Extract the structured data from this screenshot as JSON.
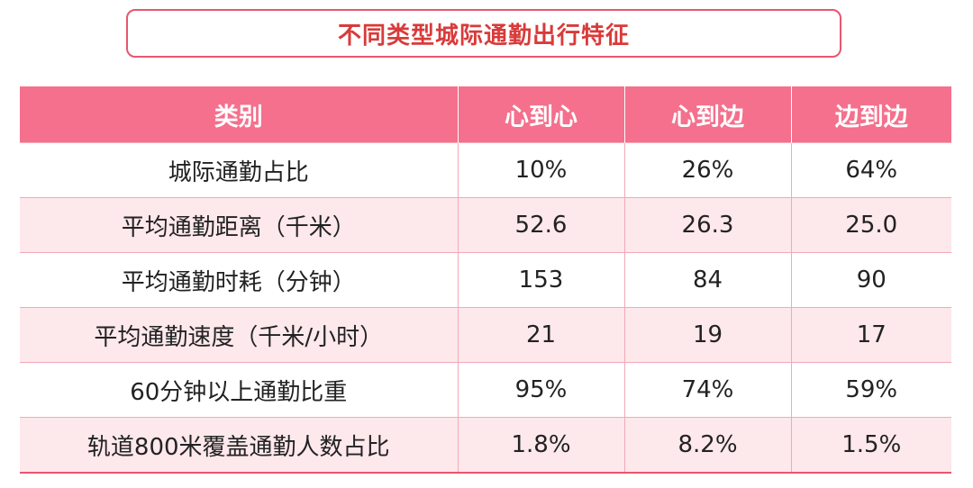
{
  "title": "不同类型城际通勤出行特征",
  "colors": {
    "header_bg": "#f4708d",
    "title_text": "#d93a3a",
    "row_alt_bg": "#fde8ec",
    "border": "#e8566f"
  },
  "chart_data": {
    "type": "table",
    "columns": [
      "类别",
      "心到心",
      "心到边",
      "边到边"
    ],
    "rows": [
      [
        "城际通勤占比",
        "10%",
        "26%",
        "64%"
      ],
      [
        "平均通勤距离（千米）",
        "52.6",
        "26.3",
        "25.0"
      ],
      [
        "平均通勤时耗（分钟）",
        "153",
        "84",
        "90"
      ],
      [
        "平均通勤速度（千米/小时）",
        "21",
        "19",
        "17"
      ],
      [
        "60分钟以上通勤比重",
        "95%",
        "74%",
        "59%"
      ],
      [
        "轨道800米覆盖通勤人数占比",
        "1.8%",
        "8.2%",
        "1.5%"
      ]
    ]
  }
}
